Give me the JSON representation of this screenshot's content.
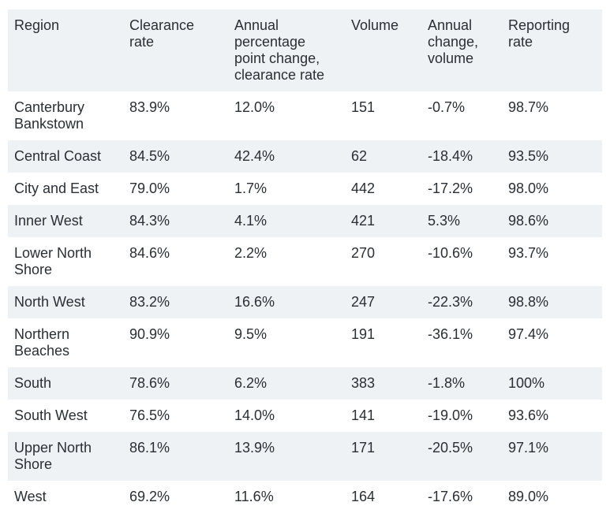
{
  "table": {
    "headers": [
      "Region",
      "Clearance rate",
      "Annual percentage point change, clearance rate",
      "Volume",
      "Annual change, volume",
      "Reporting rate"
    ],
    "rows": [
      [
        "Canterbury Bankstown",
        "83.9%",
        "12.0%",
        "151",
        "-0.7%",
        "98.7%"
      ],
      [
        "Central Coast",
        "84.5%",
        "42.4%",
        "62",
        "-18.4%",
        "93.5%"
      ],
      [
        "City and East",
        "79.0%",
        "1.7%",
        "442",
        "-17.2%",
        "98.0%"
      ],
      [
        "Inner West",
        "84.3%",
        "4.1%",
        "421",
        "5.3%",
        "98.6%"
      ],
      [
        "Lower North Shore",
        "84.6%",
        "2.2%",
        "270",
        "-10.6%",
        "93.7%"
      ],
      [
        "North West",
        "83.2%",
        "16.6%",
        "247",
        "-22.3%",
        "98.8%"
      ],
      [
        "Northern Beaches",
        "90.9%",
        "9.5%",
        "191",
        "-36.1%",
        "97.4%"
      ],
      [
        "South",
        "78.6%",
        "6.2%",
        "383",
        "-1.8%",
        "100%"
      ],
      [
        "South West",
        "76.5%",
        "14.0%",
        "141",
        "-19.0%",
        "93.6%"
      ],
      [
        "Upper North Shore",
        "86.1%",
        "13.9%",
        "171",
        "-20.5%",
        "97.1%"
      ],
      [
        "West",
        "69.2%",
        "11.6%",
        "164",
        "-17.6%",
        "89.0%"
      ]
    ]
  }
}
